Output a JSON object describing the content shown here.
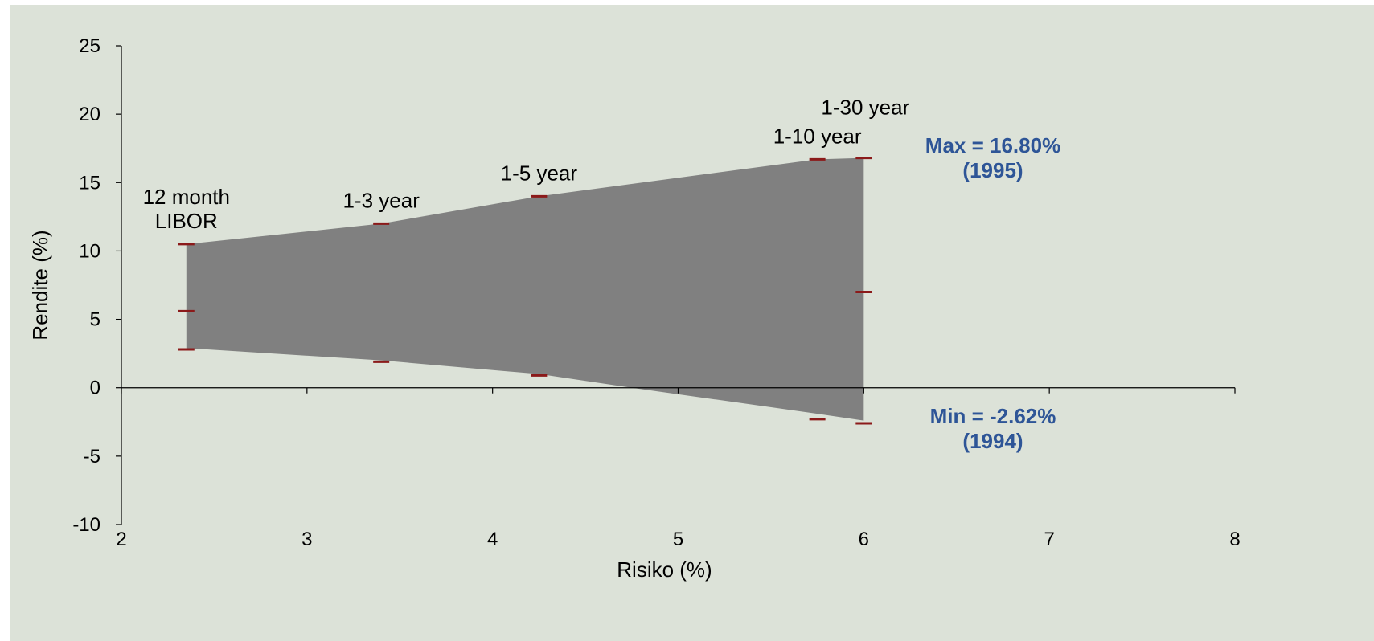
{
  "chart_data": {
    "type": "area",
    "xlabel": "Risiko (%)",
    "ylabel": "Rendite (%)",
    "xlim": [
      2,
      8
    ],
    "ylim": [
      -10,
      25
    ],
    "xticks": [
      "2",
      "3",
      "4",
      "5",
      "6",
      "7",
      "8"
    ],
    "yticks": [
      "25",
      "20",
      "15",
      "10",
      "5",
      "0",
      "-5",
      "-10"
    ],
    "grid": false,
    "colors": {
      "fill": "#808080",
      "marker": "#8b1a1a",
      "annotation": "#2e5597",
      "axis": "#000000",
      "background": "#dce2d8"
    },
    "points": [
      {
        "label": "12 month LIBOR",
        "label_lines": [
          "12 month",
          "LIBOR"
        ],
        "x": 2.35,
        "max": 10.5,
        "mid": 5.6,
        "min": 2.8
      },
      {
        "label": "1-3 year",
        "label_lines": [
          "1-3 year"
        ],
        "x": 3.4,
        "max": 12.0,
        "min": 1.9
      },
      {
        "label": "1-5 year",
        "label_lines": [
          "1-5 year"
        ],
        "x": 4.25,
        "max": 14.0,
        "min": 0.9
      },
      {
        "label": "1-10 year",
        "label_lines": [
          "1-10 year"
        ],
        "x": 5.75,
        "max": 16.7,
        "min": -2.3
      },
      {
        "label": "1-30 year",
        "label_lines": [
          "1-30 year"
        ],
        "x": 6.0,
        "max": 16.8,
        "mid": 7.0,
        "min": -2.6
      }
    ],
    "band": {
      "upper": [
        [
          2.35,
          10.5
        ],
        [
          3.4,
          12.0
        ],
        [
          4.25,
          14.0
        ],
        [
          5.75,
          16.7
        ],
        [
          6.0,
          16.8
        ]
      ],
      "lower": [
        [
          2.35,
          2.9
        ],
        [
          3.4,
          2.0
        ],
        [
          4.25,
          1.0
        ],
        [
          4.75,
          0.0
        ],
        [
          5.75,
          -1.9
        ],
        [
          6.0,
          -2.4
        ]
      ]
    },
    "annotations": [
      {
        "line1": "Max = 16.80%",
        "line2": "(1995)"
      },
      {
        "line1": "Min = -2.62%",
        "line2": "(1994)"
      }
    ]
  }
}
